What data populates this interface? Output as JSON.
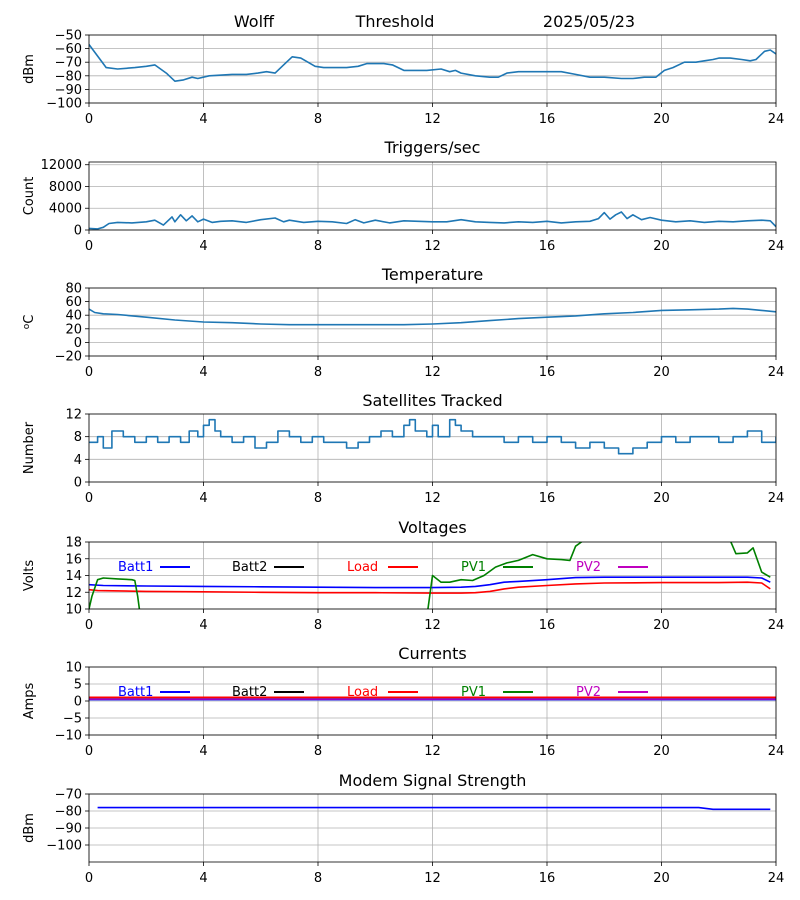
{
  "chart_data": [
    {
      "type": "line",
      "title_parts": [
        "Wolff",
        "Threshold",
        "2025/05/23"
      ],
      "xlabel": "",
      "ylabel": "dBm",
      "xlim": [
        0,
        24
      ],
      "ylim": [
        -100,
        -50
      ],
      "xticks": [
        0,
        4,
        8,
        12,
        16,
        20,
        24
      ],
      "yticks": [
        -100,
        -90,
        -80,
        -70,
        -60,
        -50
      ],
      "grid": true,
      "series": [
        {
          "color": "#1f77b4",
          "x": [
            0,
            0.6,
            1.0,
            1.6,
            2.0,
            2.3,
            2.7,
            3.0,
            3.3,
            3.6,
            3.8,
            4.2,
            5.0,
            5.5,
            5.9,
            6.2,
            6.5,
            6.8,
            7.1,
            7.4,
            7.9,
            8.2,
            8.6,
            9.0,
            9.4,
            9.7,
            10.0,
            10.3,
            10.6,
            11.0,
            11.5,
            11.8,
            12.3,
            12.6,
            12.8,
            13.0,
            13.5,
            14.0,
            14.3,
            14.6,
            15.0,
            15.5,
            16.0,
            16.5,
            17.0,
            17.5,
            18.0,
            18.6,
            19.0,
            19.4,
            19.6,
            19.8,
            20.1,
            20.4,
            20.8,
            21.2,
            21.5,
            21.8,
            22.0,
            22.4,
            22.8,
            23.1,
            23.3,
            23.6,
            23.8,
            24.0
          ],
          "values": [
            -57,
            -74,
            -75,
            -74,
            -73,
            -72,
            -78,
            -84,
            -83,
            -81,
            -82,
            -80,
            -79,
            -79,
            -78,
            -77,
            -78,
            -72,
            -66,
            -67,
            -73,
            -74,
            -74,
            -74,
            -73,
            -71,
            -71,
            -71,
            -72,
            -76,
            -76,
            -76,
            -75,
            -77,
            -76,
            -78,
            -80,
            -81,
            -81,
            -78,
            -77,
            -77,
            -77,
            -77,
            -79,
            -81,
            -81,
            -82,
            -82,
            -81,
            -81,
            -81,
            -76,
            -74,
            -70,
            -70,
            -69,
            -68,
            -67,
            -67,
            -68,
            -69,
            -68,
            -62,
            -61,
            -64
          ]
        }
      ]
    },
    {
      "type": "line",
      "title": "Triggers/sec",
      "xlabel": "",
      "ylabel": "Count",
      "xlim": [
        0,
        24
      ],
      "ylim": [
        0,
        12500
      ],
      "xticks": [
        0,
        4,
        8,
        12,
        16,
        20,
        24
      ],
      "yticks": [
        0,
        4000,
        8000,
        12000
      ],
      "grid": true,
      "series": [
        {
          "color": "#1f77b4",
          "x": [
            0,
            0.3,
            0.5,
            0.7,
            1.0,
            1.5,
            2.0,
            2.3,
            2.6,
            2.9,
            3.0,
            3.2,
            3.4,
            3.6,
            3.8,
            4.0,
            4.3,
            4.6,
            5.0,
            5.5,
            6.0,
            6.5,
            6.8,
            7.0,
            7.5,
            8.0,
            8.5,
            9.0,
            9.3,
            9.6,
            10.0,
            10.5,
            11.0,
            11.5,
            12.0,
            12.5,
            13.0,
            13.5,
            14.0,
            14.5,
            15.0,
            15.5,
            16.0,
            16.5,
            17.0,
            17.5,
            17.8,
            18.0,
            18.2,
            18.4,
            18.6,
            18.8,
            19.0,
            19.3,
            19.6,
            20.0,
            20.5,
            21.0,
            21.5,
            22.0,
            22.5,
            23.0,
            23.5,
            23.8,
            24.0
          ],
          "values": [
            300,
            200,
            500,
            1200,
            1400,
            1300,
            1500,
            1800,
            900,
            2400,
            1500,
            2800,
            1700,
            2600,
            1500,
            2000,
            1400,
            1600,
            1700,
            1400,
            1900,
            2200,
            1500,
            1800,
            1400,
            1600,
            1500,
            1200,
            1900,
            1300,
            1800,
            1300,
            1700,
            1600,
            1500,
            1500,
            1900,
            1500,
            1400,
            1300,
            1500,
            1400,
            1600,
            1300,
            1500,
            1600,
            2100,
            3200,
            2000,
            2800,
            3300,
            2100,
            2800,
            1900,
            2300,
            1800,
            1500,
            1700,
            1400,
            1600,
            1500,
            1700,
            1800,
            1700,
            600
          ]
        }
      ]
    },
    {
      "type": "line",
      "title": "Temperature",
      "xlabel": "",
      "ylabel": "oC",
      "xlim": [
        0,
        24
      ],
      "ylim": [
        -20,
        80
      ],
      "xticks": [
        0,
        4,
        8,
        12,
        16,
        20,
        24
      ],
      "yticks": [
        -20,
        0,
        20,
        40,
        60,
        80
      ],
      "grid": true,
      "series": [
        {
          "color": "#1f77b4",
          "x": [
            0,
            0.2,
            0.5,
            1.0,
            2.0,
            3.0,
            4.0,
            5.0,
            6.0,
            7.0,
            8.0,
            9.0,
            10.0,
            11.0,
            12.0,
            13.0,
            14.0,
            15.0,
            16.0,
            17.0,
            18.0,
            19.0,
            20.0,
            21.0,
            22.0,
            22.5,
            23.0,
            23.5,
            24.0
          ],
          "values": [
            49,
            44,
            42,
            41,
            37,
            33,
            30,
            29,
            27,
            26,
            26,
            26,
            26,
            26,
            27,
            29,
            32,
            35,
            37,
            39,
            42,
            44,
            47,
            48,
            49,
            50,
            49,
            47,
            45
          ]
        }
      ]
    },
    {
      "type": "line",
      "title": "Satellites Tracked",
      "xlabel": "",
      "ylabel": "Number",
      "xlim": [
        0,
        24
      ],
      "ylim": [
        0,
        12
      ],
      "xticks": [
        0,
        4,
        8,
        12,
        16,
        20,
        24
      ],
      "yticks": [
        0,
        4,
        8,
        12
      ],
      "grid": true,
      "series": [
        {
          "color": "#1f77b4",
          "step": true,
          "x": [
            0,
            0.3,
            0.5,
            0.8,
            1.2,
            1.6,
            2.0,
            2.4,
            2.8,
            3.2,
            3.5,
            3.8,
            4.0,
            4.2,
            4.4,
            4.6,
            5.0,
            5.4,
            5.8,
            6.2,
            6.6,
            7.0,
            7.4,
            7.8,
            8.2,
            8.6,
            9.0,
            9.4,
            9.8,
            10.2,
            10.6,
            11.0,
            11.2,
            11.4,
            11.8,
            12.0,
            12.2,
            12.6,
            12.8,
            13.0,
            13.4,
            14.0,
            14.5,
            15.0,
            15.5,
            16.0,
            16.5,
            17.0,
            17.5,
            18.0,
            18.5,
            19.0,
            19.5,
            20.0,
            20.5,
            21.0,
            21.5,
            22.0,
            22.5,
            23.0,
            23.5,
            24.0
          ],
          "values": [
            7,
            8,
            6,
            9,
            8,
            7,
            8,
            7,
            8,
            7,
            9,
            8,
            10,
            11,
            9,
            8,
            7,
            8,
            6,
            7,
            9,
            8,
            7,
            8,
            7,
            7,
            6,
            7,
            8,
            9,
            8,
            10,
            11,
            9,
            8,
            10,
            8,
            11,
            10,
            9,
            8,
            8,
            7,
            8,
            7,
            8,
            7,
            6,
            7,
            6,
            5,
            6,
            7,
            8,
            7,
            8,
            8,
            7,
            8,
            9,
            7,
            8
          ]
        }
      ]
    },
    {
      "type": "line",
      "title": "Voltages",
      "xlabel": "",
      "ylabel": "Volts",
      "xlim": [
        0,
        24
      ],
      "ylim": [
        10,
        18
      ],
      "xticks": [
        0,
        4,
        8,
        12,
        16,
        20,
        24
      ],
      "yticks": [
        10,
        12,
        14,
        16,
        18
      ],
      "grid": true,
      "legend": [
        "Batt1",
        "Batt2",
        "Load",
        "PV1",
        "PV2"
      ],
      "series": [
        {
          "name": "Batt1",
          "color": "#0000ff",
          "x": [
            0,
            0.5,
            2,
            4,
            6,
            8,
            10,
            12,
            13,
            13.5,
            14,
            14.5,
            15,
            16,
            17,
            18,
            20,
            22,
            23,
            23.5,
            23.8
          ],
          "values": [
            12.9,
            12.8,
            12.75,
            12.7,
            12.65,
            12.6,
            12.55,
            12.55,
            12.6,
            12.7,
            12.9,
            13.2,
            13.3,
            13.5,
            13.75,
            13.8,
            13.8,
            13.8,
            13.8,
            13.7,
            13.2
          ]
        },
        {
          "name": "Load",
          "color": "#ff0000",
          "x": [
            0,
            0.3,
            2,
            4,
            6,
            8,
            10,
            12,
            13,
            13.5,
            14,
            14.5,
            15,
            16,
            17,
            18,
            20,
            22,
            23,
            23.5,
            23.8
          ],
          "values": [
            12.3,
            12.2,
            12.1,
            12.05,
            12.0,
            11.95,
            11.95,
            11.9,
            11.9,
            11.95,
            12.1,
            12.4,
            12.6,
            12.8,
            13.0,
            13.1,
            13.15,
            13.15,
            13.2,
            13.1,
            12.4
          ]
        },
        {
          "name": "PV1",
          "color": "#008000",
          "x": [
            0,
            0.1,
            0.3,
            0.5,
            1.0,
            1.5,
            1.6,
            1.7,
            1.8
          ],
          "values": [
            10.0,
            11.5,
            13.5,
            13.7,
            13.6,
            13.5,
            13.4,
            11.5,
            9.0
          ]
        },
        {
          "name": "PV1",
          "color": "#008000",
          "x": [
            11.8,
            12.0,
            12.3,
            12.6,
            13.0,
            13.4,
            13.8,
            14.2,
            14.6,
            15.0,
            15.5,
            16.0,
            16.5,
            16.8,
            17.0,
            17.2,
            17.5
          ],
          "values": [
            9.0,
            14.0,
            13.2,
            13.2,
            13.5,
            13.4,
            14.0,
            15.0,
            15.5,
            15.8,
            16.5,
            16.0,
            15.9,
            15.8,
            17.5,
            18.0,
            19.0
          ]
        },
        {
          "name": "PV1",
          "color": "#008000",
          "x": [
            22.3,
            22.6,
            23.0,
            23.2,
            23.5,
            23.8
          ],
          "values": [
            19.0,
            16.6,
            16.7,
            17.3,
            14.4,
            13.8
          ]
        }
      ]
    },
    {
      "type": "line",
      "title": "Currents",
      "xlabel": "",
      "ylabel": "Amps",
      "xlim": [
        0,
        24
      ],
      "ylim": [
        -10,
        10
      ],
      "xticks": [
        0,
        4,
        8,
        12,
        16,
        20,
        24
      ],
      "yticks": [
        -10,
        -5,
        0,
        5,
        10
      ],
      "grid": true,
      "legend": [
        "Batt1",
        "Batt2",
        "Load",
        "PV1",
        "PV2"
      ],
      "series": [
        {
          "name": "PV1",
          "color": "#008000",
          "x": [
            0,
            24
          ],
          "values": [
            0.8,
            0.8
          ]
        },
        {
          "name": "Batt1",
          "color": "#0000ff",
          "x": [
            0,
            24
          ],
          "values": [
            0.4,
            0.4
          ]
        },
        {
          "name": "Load",
          "color": "#ff0000",
          "x": [
            0,
            24
          ],
          "values": [
            1.1,
            1.1
          ]
        },
        {
          "name": "PV2",
          "color": "#bf00bf",
          "x": [
            0,
            24
          ],
          "values": [
            0.6,
            0.6
          ]
        }
      ]
    },
    {
      "type": "line",
      "title": "Modem Signal Strength",
      "xlabel": "",
      "ylabel": "dBm",
      "xlim": [
        0,
        24
      ],
      "ylim": [
        -110,
        -70
      ],
      "xticks": [
        0,
        4,
        8,
        12,
        16,
        20,
        24
      ],
      "yticks": [
        -100,
        -90,
        -80,
        -70
      ],
      "grid": true,
      "series": [
        {
          "color": "#0000ff",
          "x": [
            0.3,
            4,
            8,
            12,
            16,
            20,
            21.3,
            21.8,
            22.5,
            23.0,
            23.8
          ],
          "values": [
            -78,
            -78,
            -78,
            -78,
            -78,
            -78,
            -78,
            -79,
            -79,
            -79,
            -79
          ]
        }
      ]
    }
  ],
  "legend_colors": {
    "Batt1": "#0000ff",
    "Batt2": "#000000",
    "Load": "#ff0000",
    "PV1": "#008000",
    "PV2": "#bf00bf"
  }
}
